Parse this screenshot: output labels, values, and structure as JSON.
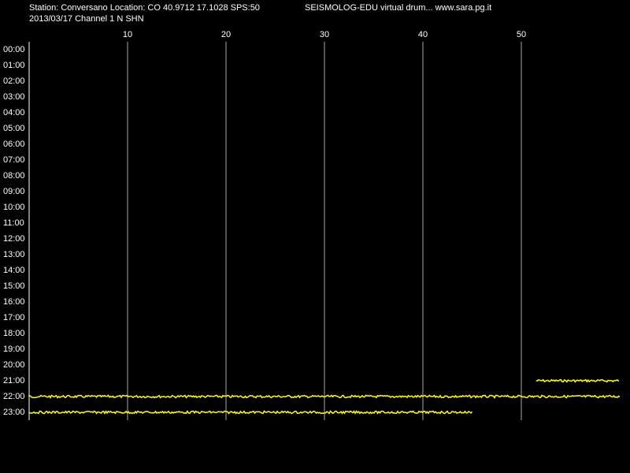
{
  "chart_data": {
    "type": "drum",
    "title": "Station: Conversano Location: CO 40.9712 17.1028 SPS:50",
    "subtitle": "2013/03/17  Channel 1 N SHN",
    "header_right": "SEISMOLOG-EDU virtual drum... www.sara.pg.it",
    "categories": [
      "00:00",
      "01:00",
      "02:00",
      "03:00",
      "04:00",
      "05:00",
      "06:00",
      "07:00",
      "08:00",
      "09:00",
      "10:00",
      "11:00",
      "12:00",
      "13:00",
      "14:00",
      "15:00",
      "16:00",
      "17:00",
      "18:00",
      "19:00",
      "20:00",
      "21:00",
      "22:00",
      "23:00"
    ],
    "xlim": [
      0,
      60
    ],
    "xticks": [
      10,
      20,
      30,
      40,
      50
    ],
    "grid": true,
    "color": "#ffff00",
    "traces": [
      {
        "row": 21,
        "start": 51.5,
        "end": 60
      },
      {
        "row": 22,
        "start": 0,
        "end": 60
      },
      {
        "row": 23,
        "start": 0,
        "end": 45
      }
    ]
  }
}
